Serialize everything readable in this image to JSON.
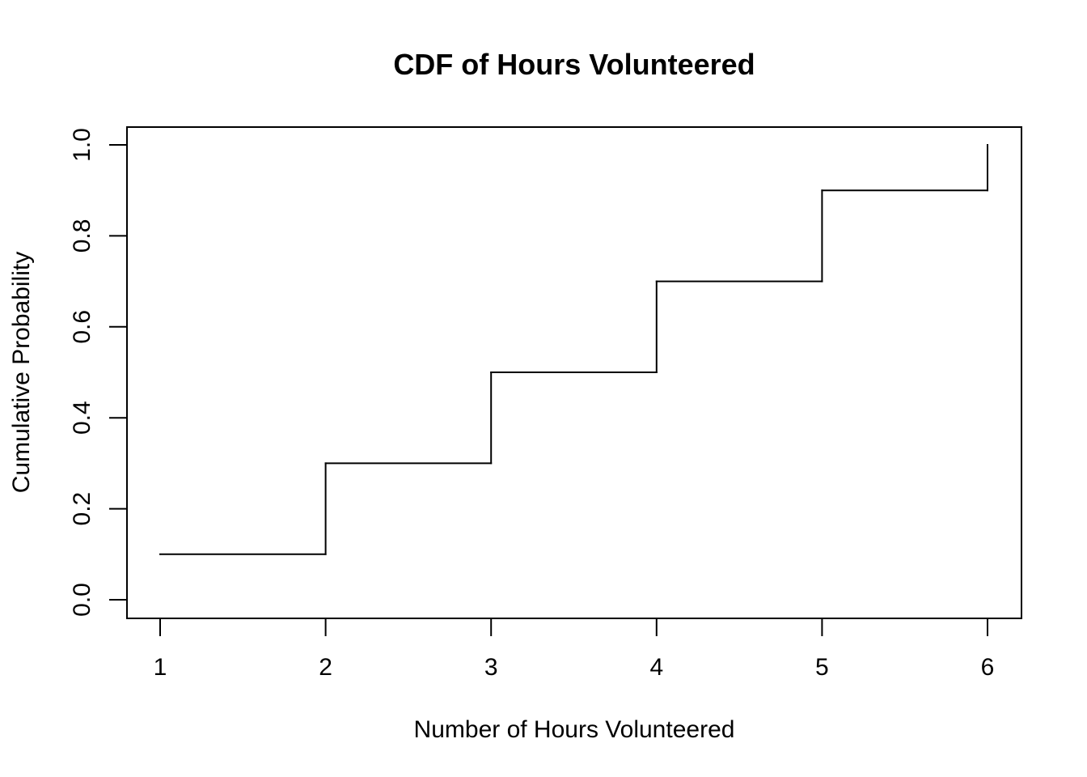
{
  "chart_data": {
    "type": "line",
    "step": true,
    "title": "CDF of Hours Volunteered",
    "xlabel": "Number of Hours Volunteered",
    "ylabel": "Cumulative Probability",
    "xlim": [
      1,
      6
    ],
    "ylim": [
      0,
      1
    ],
    "x_ticks": [
      1,
      2,
      3,
      4,
      5,
      6
    ],
    "x_tick_labels": [
      "1",
      "2",
      "3",
      "4",
      "5",
      "6"
    ],
    "y_ticks": [
      0,
      0.2,
      0.4,
      0.6,
      0.8,
      1.0
    ],
    "y_tick_labels": [
      "0.0",
      "0.2",
      "0.4",
      "0.6",
      "0.8",
      "1.0"
    ],
    "x": [
      1,
      2,
      3,
      4,
      5,
      6
    ],
    "y": [
      0.1,
      0.3,
      0.5,
      0.7,
      0.9,
      1.0
    ],
    "grid": false,
    "line_color": "#000000"
  }
}
